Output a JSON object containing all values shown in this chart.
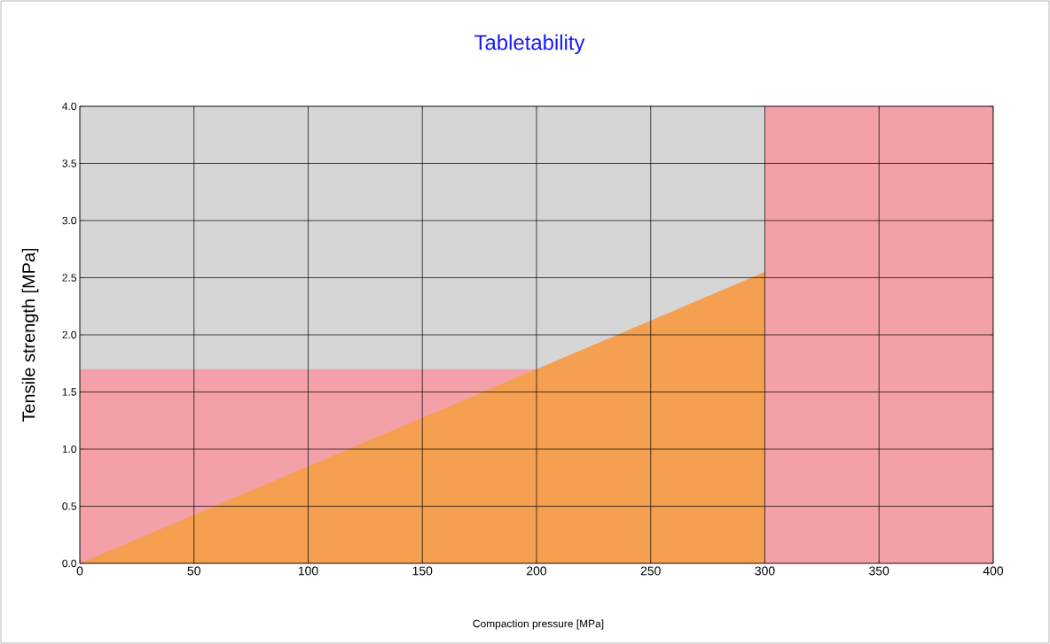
{
  "chart_data": {
    "type": "area",
    "title": "Tabletability",
    "xlabel": "Compaction pressure [MPa]",
    "ylabel": "Tensile strength [MPa]",
    "x": [
      0,
      300
    ],
    "series": [
      {
        "color": "#f5a050",
        "values": [
          0,
          2.55
        ]
      }
    ],
    "bands": [
      {
        "axis": "x",
        "from": 300,
        "to": 400,
        "color": "#f4a0a8"
      },
      {
        "axis": "y",
        "from": 0,
        "to": 1.7,
        "color": "#f4a0a8"
      }
    ],
    "xlim": [
      0,
      400
    ],
    "ylim": [
      0,
      4
    ],
    "xticks": [
      0,
      50,
      100,
      150,
      200,
      250,
      300,
      350,
      400
    ],
    "yticks": [
      {
        "value": 0,
        "label": "0.0"
      },
      {
        "value": 0.5,
        "label": "0.5"
      },
      {
        "value": 1,
        "label": "1.0"
      },
      {
        "value": 1.5,
        "label": "1.5"
      },
      {
        "value": 2,
        "label": "2.0"
      },
      {
        "value": 2.5,
        "label": "2.5"
      },
      {
        "value": 3,
        "label": "3.0"
      },
      {
        "value": 3.5,
        "label": "3.5"
      },
      {
        "value": 4,
        "label": "4.0"
      }
    ],
    "grid": true
  }
}
